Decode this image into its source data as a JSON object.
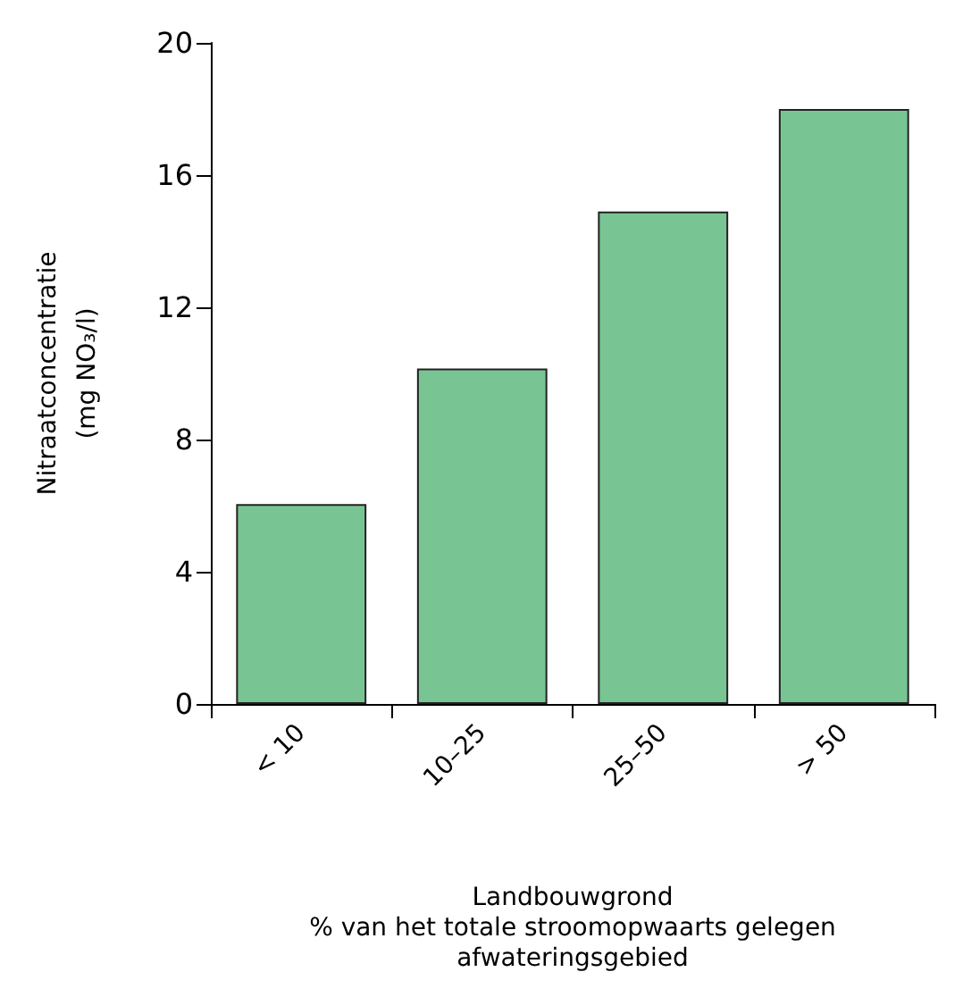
{
  "chart_data": {
    "type": "bar",
    "xlabel": "Landbouwgrond\n% van het totale stroomopwaarts gelegen\nafwateringsgebied",
    "ylabel": "Nitraatconcentratie\n(mg NO₃/l)",
    "categories": [
      "< 10",
      "10–25",
      "25–50",
      "> 50"
    ],
    "values": [
      6.05,
      10.15,
      14.9,
      18.0
    ],
    "color": "#78c593",
    "ylim": [
      0,
      20
    ],
    "yticks": [
      0,
      4,
      8,
      12,
      16,
      20
    ],
    "grid": false
  }
}
